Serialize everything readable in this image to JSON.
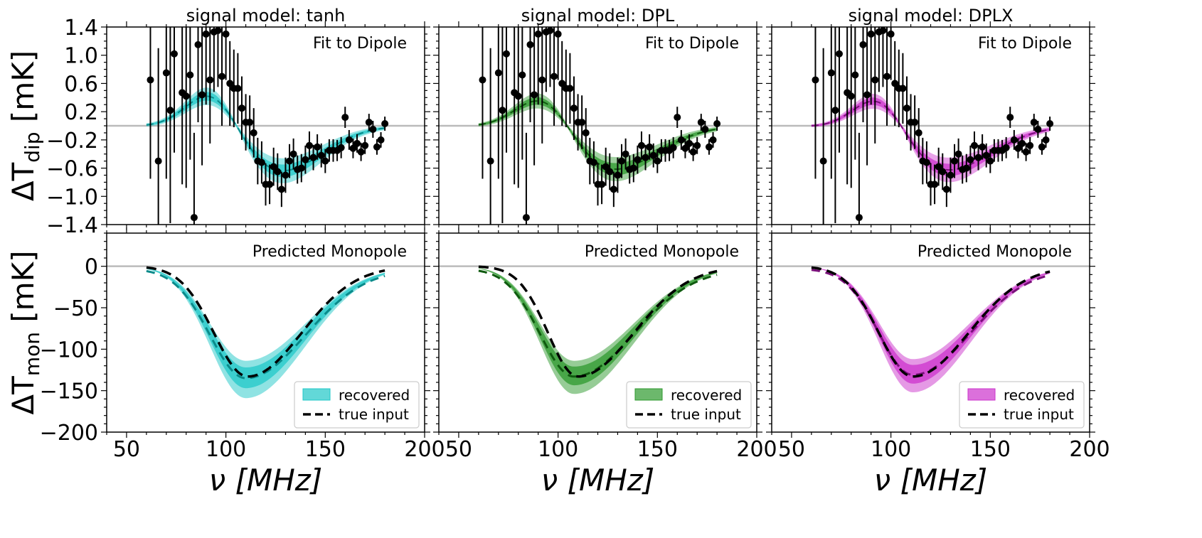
{
  "chart_data": {
    "type": "line",
    "shared": {
      "x_label": "ν [MHz]",
      "x_ticks": [
        "50",
        "100",
        "150",
        "200"
      ],
      "x_range": [
        40,
        200
      ],
      "dipole_panel": {
        "y_label_main": "ΔT",
        "y_label_sub": "dip",
        "y_label_unit": "[mK]",
        "y_range": [
          -1.4,
          1.4
        ],
        "y_ticks": [
          "1.4",
          "1.0",
          "0.6",
          "0.2",
          "−0.2",
          "−0.6",
          "−1.0",
          "−1.4"
        ],
        "annotation": "Fit to Dipole"
      },
      "monopole_panel": {
        "y_label_main": "ΔT",
        "y_label_sub": "mon",
        "y_label_unit": "[mK]",
        "y_range": [
          -200,
          40
        ],
        "y_ticks": [
          "0",
          "−50",
          "−100",
          "−150",
          "−200"
        ],
        "annotation": "Predicted Monopole"
      },
      "legend": {
        "recovered": "recovered",
        "true_input": "true input",
        "placement": "lower-right"
      },
      "data_points": {
        "x": [
          62,
          66,
          70,
          72,
          74,
          78,
          80,
          82,
          84,
          86,
          88,
          90,
          92,
          94,
          96,
          98,
          100,
          102,
          104,
          106,
          108,
          110,
          112,
          114,
          116,
          118,
          120,
          122,
          124,
          126,
          128,
          130,
          132,
          134,
          136,
          138,
          140,
          142,
          144,
          146,
          148,
          150,
          152,
          154,
          156,
          158,
          160,
          162,
          164,
          166,
          168,
          170,
          172,
          174,
          176,
          178,
          180
        ],
        "y": [
          0.65,
          -0.5,
          0.75,
          0.22,
          1.02,
          0.47,
          0.42,
          0.72,
          -1.3,
          1.15,
          0.44,
          1.3,
          0.65,
          1.33,
          1.35,
          0.7,
          1.3,
          0.6,
          0.53,
          0.53,
          0.25,
          0.05,
          0.05,
          -0.1,
          -0.5,
          -0.52,
          -0.83,
          -0.83,
          -0.58,
          -0.65,
          -0.9,
          -0.7,
          -0.5,
          -0.4,
          -0.62,
          -0.6,
          -0.48,
          -0.28,
          -0.45,
          -0.3,
          -0.42,
          -0.5,
          -0.35,
          -0.35,
          -0.35,
          -0.31,
          0.12,
          -0.2,
          -0.32,
          -0.25,
          -0.37,
          -0.28,
          0.05,
          -0.05,
          -0.3,
          -0.2,
          0.03
        ],
        "err": [
          1.4,
          1.6,
          1.5,
          1.6,
          1.4,
          1.3,
          1.3,
          1.2,
          1.2,
          1.1,
          1.0,
          1.0,
          0.9,
          0.85,
          0.8,
          0.7,
          0.65,
          0.6,
          0.55,
          0.5,
          0.45,
          0.4,
          0.38,
          0.35,
          0.33,
          0.3,
          0.3,
          0.28,
          0.27,
          0.26,
          0.25,
          0.25,
          0.24,
          0.22,
          0.2,
          0.2,
          0.2,
          0.2,
          0.18,
          0.18,
          0.17,
          0.17,
          0.16,
          0.16,
          0.15,
          0.15,
          0.15,
          0.14,
          0.14,
          0.13,
          0.13,
          0.12,
          0.12,
          0.12,
          0.11,
          0.11,
          0.1
        ]
      }
    },
    "panels": [
      {
        "title": "signal model: tanh",
        "color": "#20c8c8",
        "dark_color": "#0a8a8a",
        "dipole_amp": 0.62,
        "dipole_center": 94,
        "dipole_width": 13,
        "dipole_trough_amp": -0.66,
        "dipole_trough_center": 126,
        "dipole_trough_width": 22,
        "monopole_depth": -132,
        "monopole_center": 110,
        "monopole_left_width": 18,
        "monopole_right_width": 30,
        "true_depth": -133,
        "true_center": 111,
        "true_left_width": 17,
        "true_right_width": 27,
        "band_inner": 10,
        "band_outer": 18
      },
      {
        "title": "signal model: DPL",
        "color": "#2e9a2e",
        "dark_color": "#0f5a0f",
        "dipole_amp": 0.6,
        "dipole_center": 94,
        "dipole_width": 14,
        "dipole_trough_amp": -0.65,
        "dipole_trough_center": 125,
        "dipole_trough_width": 24,
        "monopole_depth": -130,
        "monopole_center": 108,
        "monopole_left_width": 17,
        "monopole_right_width": 30,
        "true_depth": -133,
        "true_center": 110,
        "true_left_width": 15,
        "true_right_width": 28,
        "band_inner": 9,
        "band_outer": 16
      },
      {
        "title": "signal model: DPLX",
        "color": "#cc33cc",
        "dark_color": "#7a107a",
        "dipole_amp": 0.6,
        "dipole_center": 95,
        "dipole_width": 13,
        "dipole_trough_amp": -0.65,
        "dipole_trough_center": 126,
        "dipole_trough_width": 24,
        "monopole_depth": -128,
        "monopole_center": 111,
        "monopole_left_width": 17,
        "monopole_right_width": 29,
        "true_depth": -133,
        "true_center": 111,
        "true_left_width": 17,
        "true_right_width": 28,
        "band_inner": 9,
        "band_outer": 16
      }
    ]
  }
}
